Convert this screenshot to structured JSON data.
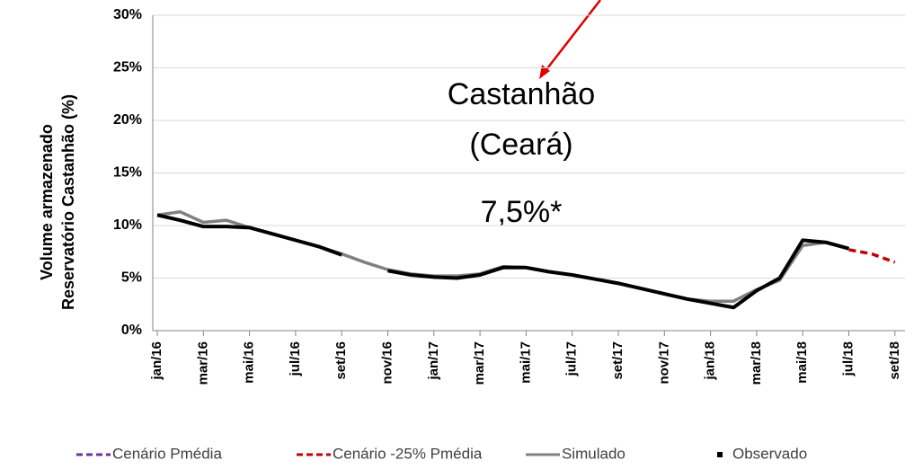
{
  "chart_data": {
    "type": "line",
    "y_label": [
      "Volume armazenado",
      "Reservatório Castanhão (%)"
    ],
    "annotations": [
      "Castanhão",
      "(Ceará)",
      "7,5%*"
    ],
    "categories": [
      "jan/16",
      null,
      "mar/16",
      null,
      "mai/16",
      null,
      "jul/16",
      null,
      "set/16",
      null,
      "nov/16",
      null,
      "jan/17",
      null,
      "mar/17",
      null,
      "mai/17",
      null,
      "jul/17",
      null,
      "set/17",
      null,
      "nov/17",
      null,
      "jan/18",
      null,
      "mar/18",
      null,
      "mai/18",
      null,
      "jul/18",
      null,
      "set/18"
    ],
    "series": [
      {
        "name": "Cenário Pmédia",
        "color": "#7030a0",
        "dashed": true,
        "values": [
          null,
          null,
          null,
          null,
          null,
          null,
          null,
          null,
          null,
          null,
          null,
          null,
          null,
          null,
          null,
          null,
          null,
          null,
          null,
          null,
          null,
          null,
          null,
          null,
          null,
          null,
          null,
          null,
          null,
          null,
          null,
          null,
          null
        ]
      },
      {
        "name": "Cenário -25% Pmédia",
        "color": "#c00000",
        "dashed": true,
        "values": [
          null,
          null,
          null,
          null,
          null,
          null,
          null,
          null,
          null,
          null,
          null,
          null,
          null,
          null,
          null,
          null,
          null,
          null,
          null,
          null,
          null,
          null,
          null,
          null,
          null,
          null,
          null,
          null,
          null,
          null,
          7.7,
          7.3,
          6.5
        ]
      },
      {
        "name": "Simulado",
        "color": "#808080",
        "values": [
          11.0,
          11.3,
          10.3,
          10.5,
          9.8,
          9.2,
          8.6,
          8.0,
          7.3,
          6.5,
          5.8,
          5.4,
          5.2,
          5.2,
          5.4,
          6.1,
          6.0,
          5.6,
          5.3,
          4.9,
          4.5,
          4.0,
          3.5,
          3.0,
          2.8,
          2.8,
          3.9,
          4.8,
          8.1,
          8.4,
          7.8,
          null,
          null
        ]
      },
      {
        "name": "Observado",
        "color": "#000000",
        "marker": true,
        "values": [
          11.0,
          10.5,
          9.9,
          9.9,
          9.8,
          9.2,
          8.6,
          8.0,
          7.2,
          null,
          5.7,
          5.3,
          5.1,
          5.0,
          5.3,
          6.0,
          6.0,
          5.6,
          5.3,
          4.9,
          4.5,
          4.0,
          3.5,
          3.0,
          2.6,
          2.2,
          3.8,
          5.0,
          8.6,
          8.4,
          7.8,
          null,
          null
        ]
      }
    ],
    "ylim": [
      0,
      30
    ],
    "yticks": [
      {
        "value": 0,
        "label": "0%"
      },
      {
        "value": 5,
        "label": "5%"
      },
      {
        "value": 10,
        "label": "10%"
      },
      {
        "value": 15,
        "label": "15%"
      },
      {
        "value": 20,
        "label": "20%"
      },
      {
        "value": 25,
        "label": "25%"
      },
      {
        "value": 30,
        "label": "30%"
      }
    ],
    "grid": true,
    "legend": "bottom"
  }
}
